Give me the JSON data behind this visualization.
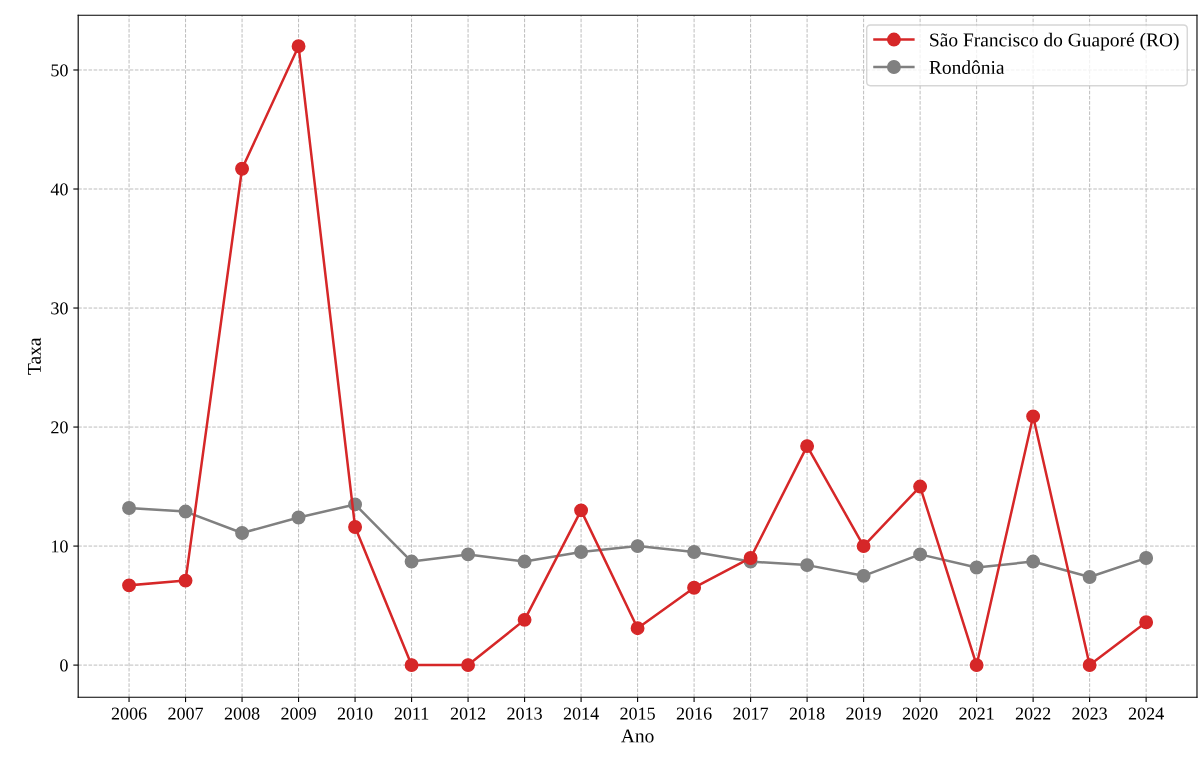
{
  "chart_data": {
    "type": "line",
    "xlabel": "Ano",
    "ylabel": "Taxa",
    "categories": [
      "2006",
      "2007",
      "2008",
      "2009",
      "2010",
      "2011",
      "2012",
      "2013",
      "2014",
      "2015",
      "2016",
      "2017",
      "2018",
      "2019",
      "2020",
      "2021",
      "2022",
      "2023",
      "2024"
    ],
    "series": [
      {
        "name": "São Francisco do Guaporé (RO)",
        "color": "#d62728",
        "values": [
          6.7,
          7.1,
          41.7,
          52.0,
          11.6,
          0,
          0,
          3.8,
          13.0,
          3.1,
          6.5,
          9.0,
          18.4,
          10.0,
          15.0,
          0,
          20.9,
          0,
          3.6
        ]
      },
      {
        "name": "Rondônia",
        "color": "#808080",
        "values": [
          13.2,
          12.9,
          11.1,
          12.4,
          13.5,
          8.7,
          9.3,
          8.7,
          9.5,
          10.0,
          9.5,
          8.7,
          8.4,
          7.5,
          9.3,
          8.2,
          8.7,
          7.4,
          9.0
        ]
      }
    ],
    "ylim": [
      -2.7,
      54.6
    ],
    "yticks": [
      0,
      10,
      20,
      30,
      40,
      50
    ],
    "grid": true,
    "legend": "top right",
    "marker": "circle",
    "line_style": "solid"
  }
}
